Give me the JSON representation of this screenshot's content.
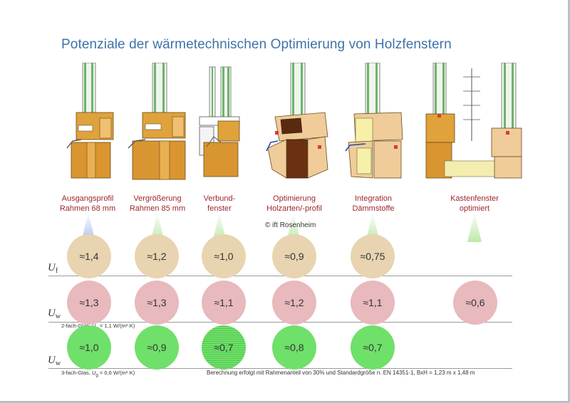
{
  "title": "Potenziale der wärmetechnischen Optimierung von  Holzfenstern",
  "copyright": "© ift Rosenheim",
  "watermark": "© ift Rosenheim",
  "variants": [
    {
      "caption1": "Ausgangsprofil",
      "caption2": "Rahmen 68 mm",
      "beam_color": "#a7c3ec"
    },
    {
      "caption1": "Vergrößerung",
      "caption2": "Rahmen 85 mm",
      "beam_color": "#bde9a9"
    },
    {
      "caption1": "Verbund-",
      "caption2": "fenster",
      "beam_color": "#bde9a9"
    },
    {
      "caption1": "Optimierung",
      "caption2": "Holzarten/-profil",
      "beam_color": "#bde9a9"
    },
    {
      "caption1": "Integration",
      "caption2": "Dämmstoffe",
      "beam_color": "#bde9a9"
    },
    {
      "caption1": "Kastenfenster",
      "caption2": "optimiert",
      "beam_color": "#bde9a9"
    }
  ],
  "rows": {
    "uf": {
      "symbol": "U",
      "sub": "f",
      "values": [
        "≈1,4",
        "≈1,2",
        "≈1,0",
        "≈0,9",
        "≈0,75"
      ]
    },
    "uw2": {
      "symbol": "U",
      "sub": "w",
      "note_a": "2-fach-Glas, ",
      "note_sym": "U",
      "note_sub": "g",
      "note_b": " = 1,1 W/(m²·K)",
      "values": [
        "≈1,3",
        "≈1,3",
        "≈1,1",
        "≈1,2",
        "≈1,1",
        "≈0,6"
      ]
    },
    "uw3": {
      "symbol": "U",
      "sub": "w",
      "note_a": "3-fach-Glas, ",
      "note_sym": "U",
      "note_sub": "g",
      "note_b": " = 0,6 W/(m²·K)",
      "values": [
        "≈1,0",
        "≈0,9",
        "≈0,7",
        "≈0,8",
        "≈0,7"
      ]
    }
  },
  "footnote": "Berechnung  erfolgt mit Rahmenanteil von 30% und Standardgröße n. EN 14351-1, BxH = 1,23 m  x 1,48 m",
  "colors": {
    "title": "#3e73a8",
    "caption": "#a0262c",
    "uf_circle": "#e8d4b0",
    "uw2_circle": "#e8b9bd",
    "uw3_circle": "#6fe06a",
    "wood": "#e0a23a",
    "wood_dark": "#5a2a10",
    "glass": "#6fb36a"
  }
}
